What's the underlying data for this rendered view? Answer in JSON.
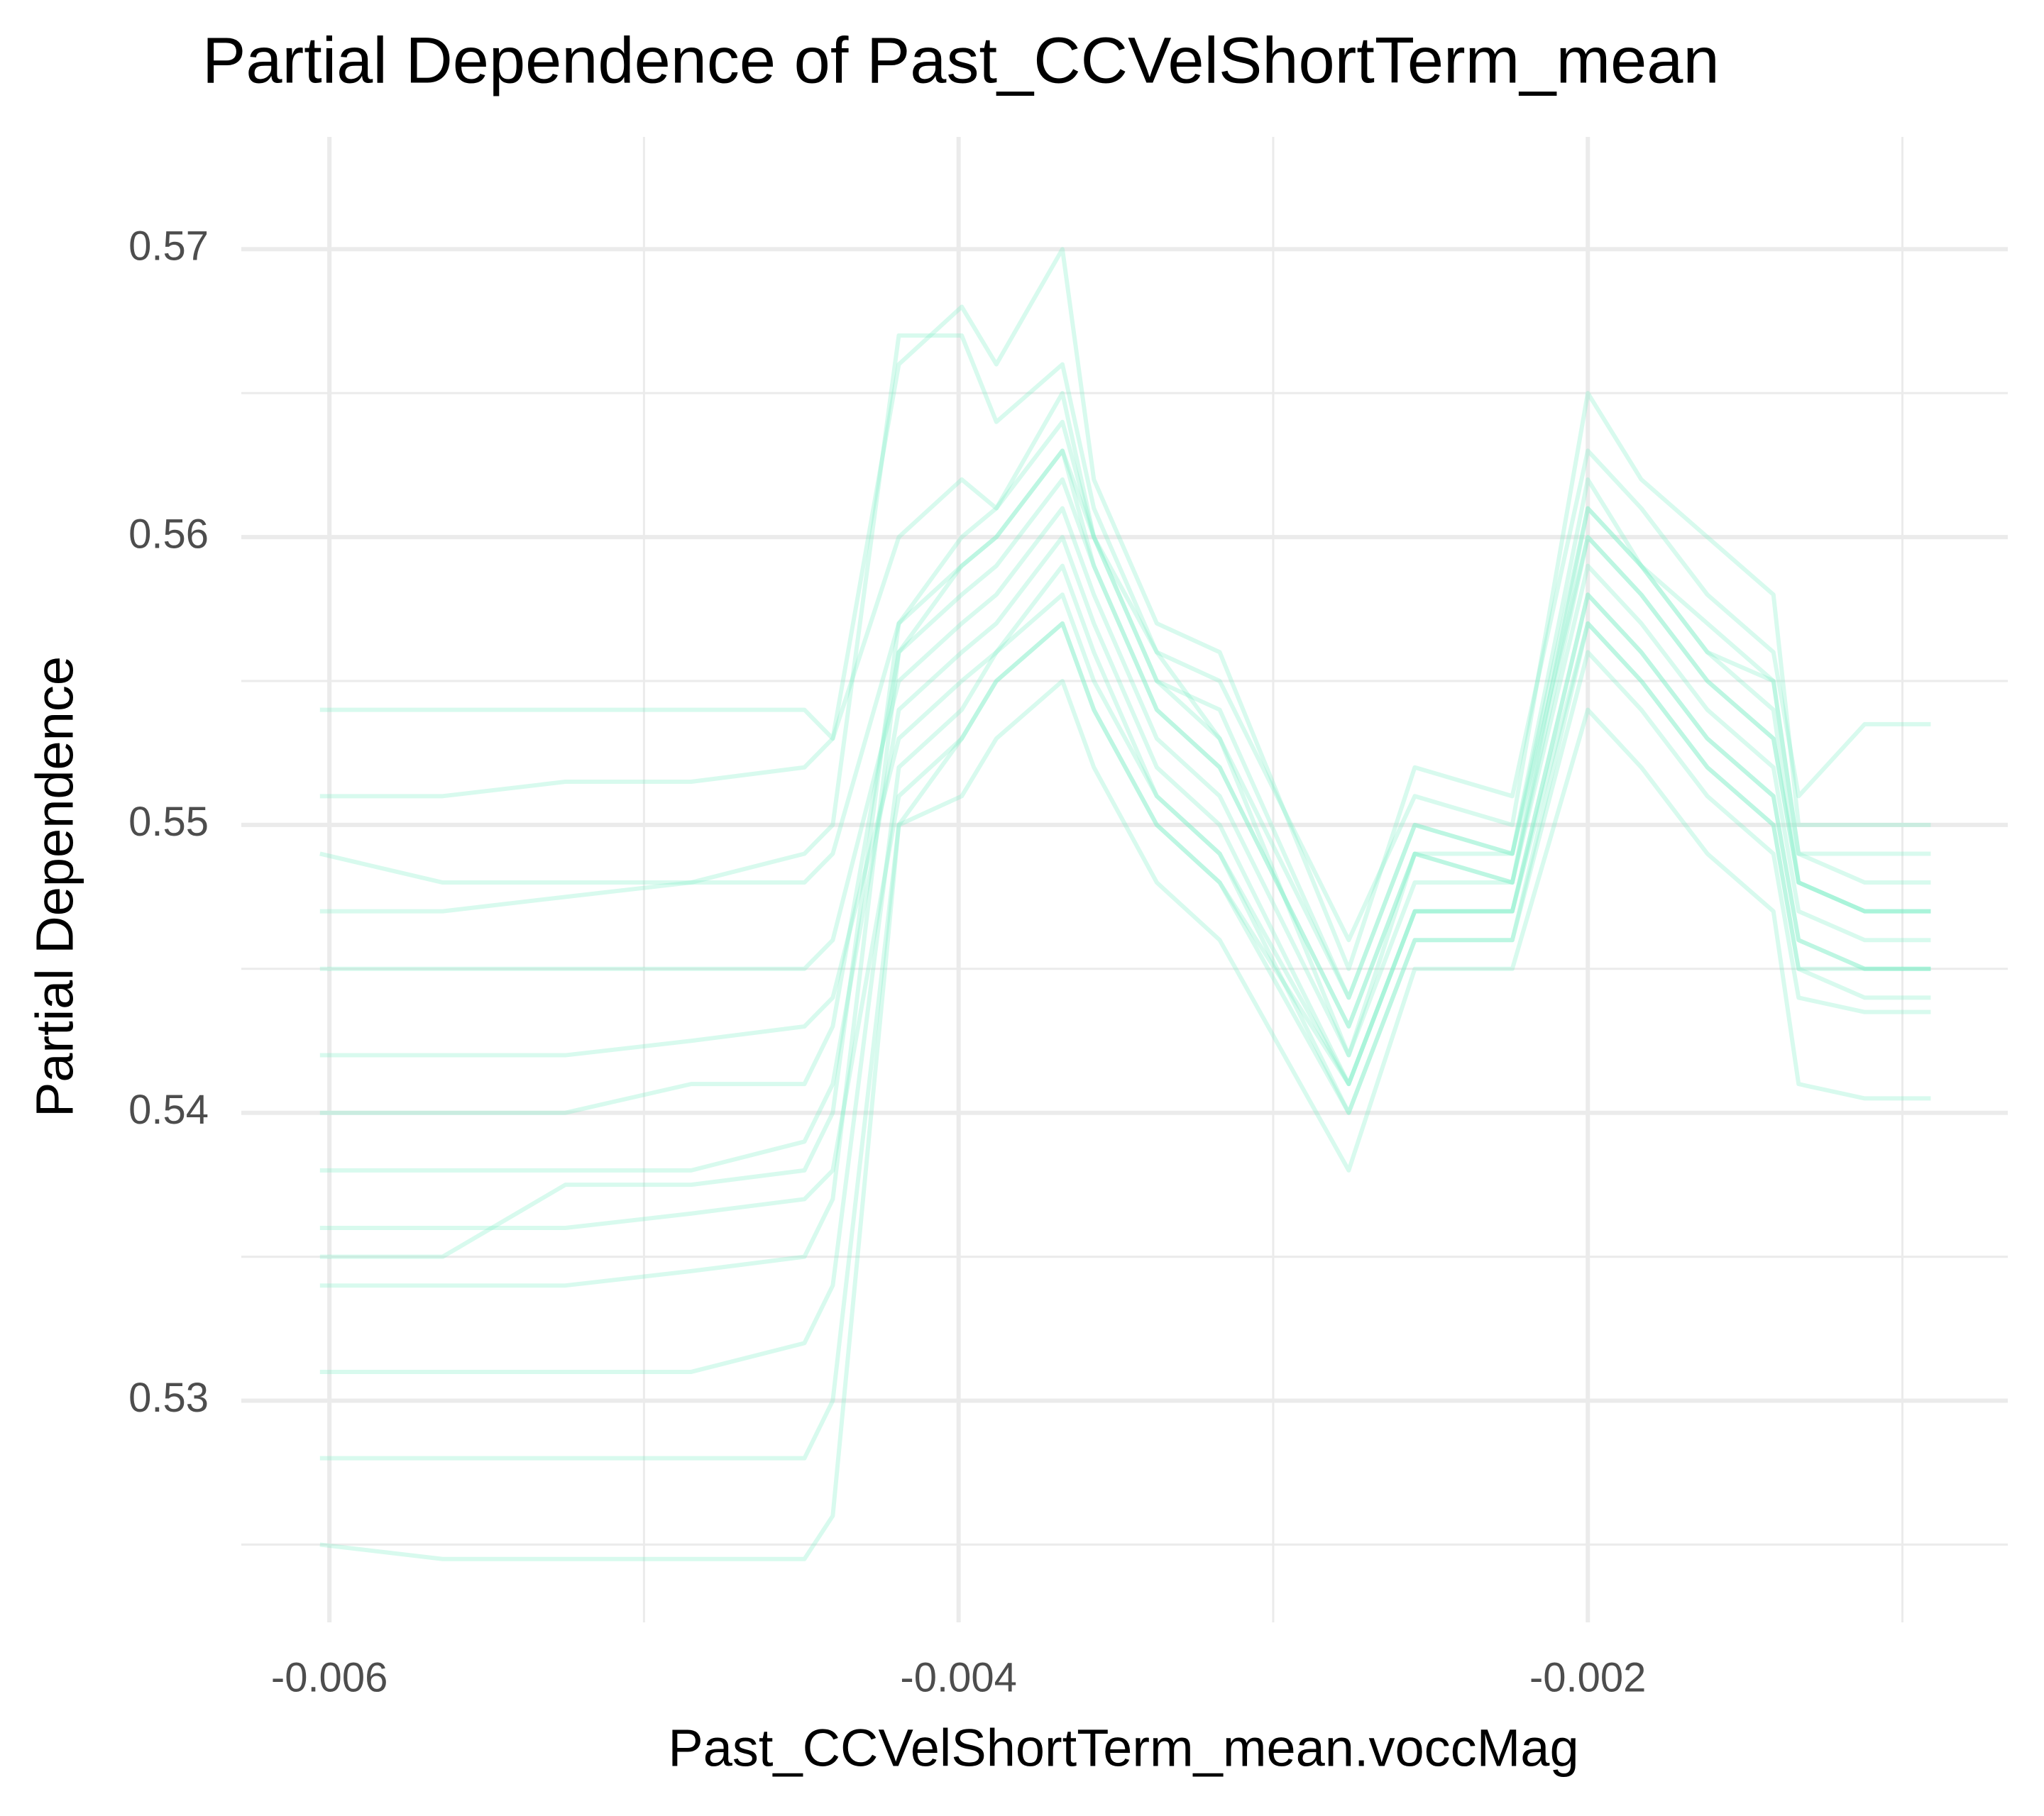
{
  "chart_data": {
    "type": "line",
    "title": "Partial Dependence of Past_CCVelShortTerm_mean",
    "x_label": "Past_CCVelShortTerm_mean.voccMag",
    "y_label": "Partial Dependence",
    "color": "#7FF0C8",
    "grid": true,
    "xlim": [
      -0.00628,
      -0.000665
    ],
    "ylim": [
      0.5223,
      0.5739
    ],
    "xticks": [
      -0.006,
      -0.004,
      -0.002
    ],
    "yticks": [
      0.53,
      0.54,
      0.55,
      0.56,
      0.57
    ],
    "x": [
      -0.00603,
      -0.00564,
      -0.00525,
      -0.00485,
      -0.00449,
      -0.0044,
      -0.00419,
      -0.00399,
      -0.00388,
      -0.00367,
      -0.00357,
      -0.00337,
      -0.00317,
      -0.00276,
      -0.00255,
      -0.00224,
      -0.002,
      -0.00183,
      -0.00162,
      -0.00141,
      -0.00133,
      -0.00112,
      -0.00091
    ],
    "series": [
      {
        "values": [
          0.554,
          0.554,
          0.554,
          0.554,
          0.554,
          0.553,
          0.566,
          0.568,
          0.566,
          0.57,
          0.562,
          0.557,
          0.556,
          0.545,
          0.552,
          0.551,
          0.563,
          0.561,
          0.558,
          0.556,
          0.551,
          0.5535,
          0.5535
        ]
      },
      {
        "values": [
          0.551,
          0.551,
          0.5515,
          0.5515,
          0.552,
          0.553,
          0.56,
          0.562,
          0.561,
          0.565,
          0.56,
          0.555,
          0.554,
          0.544,
          0.55,
          0.549,
          0.562,
          0.559,
          0.556,
          0.555,
          0.549,
          0.549,
          0.549
        ]
      },
      {
        "values": [
          0.547,
          0.547,
          0.5475,
          0.548,
          0.548,
          0.549,
          0.557,
          0.559,
          0.56,
          0.563,
          0.559,
          0.554,
          0.552,
          0.543,
          0.549,
          0.549,
          0.56,
          0.558,
          0.555,
          0.553,
          0.548,
          0.547,
          0.547
        ]
      },
      {
        "values": [
          0.545,
          0.545,
          0.545,
          0.545,
          0.545,
          0.546,
          0.555,
          0.557,
          0.558,
          0.561,
          0.558,
          0.553,
          0.551,
          0.542,
          0.548,
          0.548,
          0.559,
          0.557,
          0.554,
          0.552,
          0.547,
          0.546,
          0.546
        ]
      },
      {
        "values": [
          0.542,
          0.542,
          0.542,
          0.5425,
          0.543,
          0.544,
          0.553,
          0.555,
          0.556,
          0.559,
          0.556,
          0.551,
          0.549,
          0.541,
          0.547,
          0.547,
          0.558,
          0.556,
          0.553,
          0.551,
          0.546,
          0.545,
          0.545
        ]
      },
      {
        "values": [
          0.54,
          0.54,
          0.54,
          0.541,
          0.541,
          0.543,
          0.556,
          0.558,
          0.559,
          0.562,
          0.559,
          0.554,
          0.552,
          0.543,
          0.549,
          0.548,
          0.56,
          0.558,
          0.555,
          0.553,
          0.548,
          0.547,
          0.547
        ]
      },
      {
        "values": [
          0.538,
          0.538,
          0.538,
          0.538,
          0.539,
          0.541,
          0.554,
          0.556,
          0.557,
          0.56,
          0.557,
          0.552,
          0.55,
          0.541,
          0.547,
          0.547,
          0.558,
          0.556,
          0.553,
          0.551,
          0.546,
          0.545,
          0.545
        ]
      },
      {
        "values": [
          0.536,
          0.536,
          0.536,
          0.5365,
          0.537,
          0.538,
          0.551,
          0.553,
          0.555,
          0.557,
          0.554,
          0.55,
          0.548,
          0.54,
          0.546,
          0.546,
          0.556,
          0.554,
          0.551,
          0.549,
          0.544,
          0.5435,
          0.5435
        ]
      },
      {
        "values": [
          0.534,
          0.534,
          0.534,
          0.5345,
          0.535,
          0.537,
          0.556,
          0.559,
          0.56,
          0.563,
          0.56,
          0.555,
          0.553,
          0.544,
          0.55,
          0.549,
          0.561,
          0.559,
          0.557,
          0.555,
          0.549,
          0.548,
          0.548
        ]
      },
      {
        "values": [
          0.531,
          0.531,
          0.531,
          0.531,
          0.532,
          0.534,
          0.552,
          0.554,
          0.556,
          0.558,
          0.555,
          0.551,
          0.549,
          0.54,
          0.546,
          0.546,
          0.557,
          0.555,
          0.552,
          0.55,
          0.545,
          0.544,
          0.544
        ]
      },
      {
        "values": [
          0.528,
          0.528,
          0.528,
          0.528,
          0.528,
          0.53,
          0.55,
          0.553,
          0.555,
          0.557,
          0.554,
          0.55,
          0.548,
          0.541,
          0.547,
          0.547,
          0.557,
          0.555,
          0.552,
          0.55,
          0.545,
          0.545,
          0.545
        ]
      },
      {
        "values": [
          0.525,
          0.5245,
          0.5245,
          0.5245,
          0.5245,
          0.526,
          0.55,
          0.551,
          0.553,
          0.555,
          0.552,
          0.548,
          0.546,
          0.538,
          0.545,
          0.545,
          0.554,
          0.552,
          0.549,
          0.547,
          0.541,
          0.5405,
          0.5405
        ]
      },
      {
        "values": [
          0.535,
          0.535,
          0.5375,
          0.5375,
          0.538,
          0.54,
          0.557,
          0.56,
          0.561,
          0.564,
          0.56,
          0.556,
          0.553,
          0.542,
          0.549,
          0.548,
          0.561,
          0.559,
          0.556,
          0.554,
          0.548,
          0.547,
          0.547
        ]
      },
      {
        "values": [
          0.549,
          0.548,
          0.548,
          0.548,
          0.549,
          0.55,
          0.567,
          0.567,
          0.564,
          0.566,
          0.561,
          0.556,
          0.555,
          0.546,
          0.551,
          0.55,
          0.565,
          0.562,
          0.56,
          0.558,
          0.55,
          0.55,
          0.55
        ]
      }
    ]
  }
}
